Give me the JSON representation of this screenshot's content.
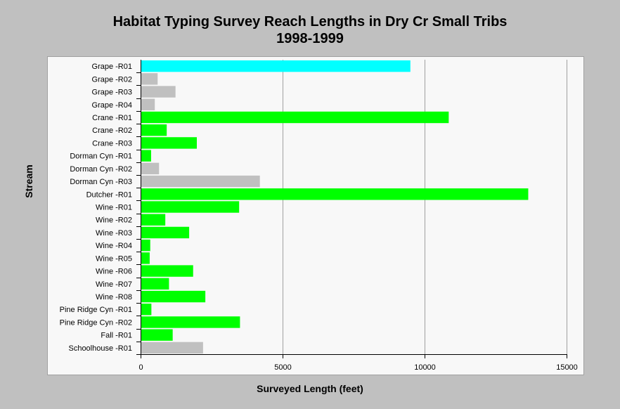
{
  "chart_data": {
    "type": "bar",
    "orientation": "horizontal",
    "title": "Habitat Typing Survey Reach Lengths in Dry Cr Small Tribs",
    "subtitle": "1998-1999",
    "xlabel": "Surveyed Length (feet)",
    "ylabel": "Stream",
    "xlim": [
      0,
      15000
    ],
    "xticks": [
      0,
      5000,
      10000,
      15000
    ],
    "grid": "vertical",
    "legend": "none",
    "categories": [
      "Grape -R01",
      "Grape -R02",
      "Grape -R03",
      "Grape -R04",
      "Crane -R01",
      "Crane -R02",
      "Crane -R03",
      "Dorman Cyn -R01",
      "Dorman Cyn -R02",
      "Dorman Cyn -R03",
      "Dutcher -R01",
      "Wine -R01",
      "Wine -R02",
      "Wine -R03",
      "Wine -R04",
      "Wine -R05",
      "Wine -R06",
      "Wine -R07",
      "Wine -R08",
      "Pine Ridge Cyn -R01",
      "Pine Ridge Cyn -R02",
      "Fall -R01",
      "Schoolhouse -R01"
    ],
    "values": [
      9500,
      600,
      1230,
      500,
      10850,
      920,
      1980,
      370,
      650,
      4200,
      13650,
      3470,
      870,
      1710,
      340,
      320,
      1850,
      1000,
      2280,
      380,
      3500,
      1130,
      2200
    ],
    "bar_colors": [
      "#00ffff",
      "#c0c0c0",
      "#c0c0c0",
      "#c0c0c0",
      "#00ff00",
      "#00ff00",
      "#00ff00",
      "#00ff00",
      "#c0c0c0",
      "#c0c0c0",
      "#00ff00",
      "#00ff00",
      "#00ff00",
      "#00ff00",
      "#00ff00",
      "#00ff00",
      "#00ff00",
      "#00ff00",
      "#00ff00",
      "#00ff00",
      "#00ff00",
      "#00ff00",
      "#c0c0c0"
    ]
  }
}
